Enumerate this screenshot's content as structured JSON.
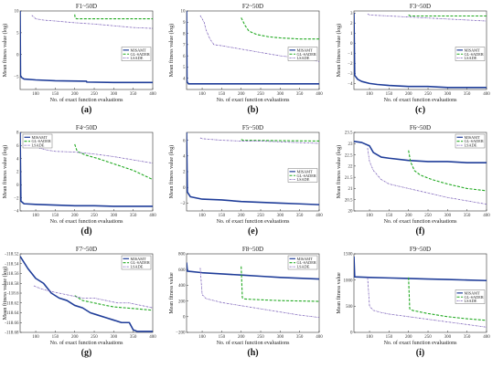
{
  "colors": {
    "misamt": "#1f3d99",
    "gl_sader": "#22aa22",
    "lsade": "#7a5fb8"
  },
  "chart_data": [
    {
      "type": "line",
      "panel_label": "(a)",
      "title": "F1~50D",
      "xlabel": "No. of exact function evaluations",
      "ylabel": "Mean fitness value (log)",
      "xlim": [
        60,
        400
      ],
      "ylim": [
        -8,
        10
      ],
      "xticks": [
        100,
        150,
        200,
        250,
        300,
        350,
        400
      ],
      "yticks": [
        -5,
        0,
        5,
        10
      ],
      "legend": "center-right",
      "series": [
        {
          "name": "MISAMT",
          "x": [
            60,
            61,
            63,
            70,
            100,
            150,
            230,
            231,
            300,
            400
          ],
          "y": [
            10,
            -4.8,
            -5.2,
            -5.6,
            -5.8,
            -6.0,
            -6.1,
            -6.3,
            -6.4,
            -6.4
          ]
        },
        {
          "name": "GL-SADER",
          "x": [
            200,
            201,
            205,
            400
          ],
          "y": [
            9.2,
            8.4,
            8.2,
            8.2
          ]
        },
        {
          "name": "LSADE",
          "x": [
            90,
            100,
            120,
            150,
            200,
            250,
            300,
            350,
            400
          ],
          "y": [
            9.0,
            8.2,
            7.9,
            7.7,
            7.3,
            7.0,
            6.6,
            6.2,
            6.0
          ]
        }
      ]
    },
    {
      "type": "line",
      "panel_label": "(b)",
      "title": "F2~50D",
      "xlabel": "No. of exact function evaluations",
      "ylabel": "Mean fitness value (log)",
      "xlim": [
        60,
        400
      ],
      "ylim": [
        3,
        10
      ],
      "xticks": [
        100,
        150,
        200,
        250,
        300,
        350,
        400
      ],
      "yticks": [
        4,
        5,
        6,
        7,
        8,
        9,
        10
      ],
      "legend": "center-right",
      "series": [
        {
          "name": "MISAMT",
          "x": [
            60,
            61,
            65,
            400
          ],
          "y": [
            10,
            3.7,
            3.5,
            3.5
          ]
        },
        {
          "name": "GL-SADER",
          "x": [
            200,
            210,
            220,
            240,
            270,
            300,
            350,
            400
          ],
          "y": [
            9.4,
            8.7,
            8.2,
            7.9,
            7.7,
            7.6,
            7.5,
            7.5
          ]
        },
        {
          "name": "LSADE",
          "x": [
            95,
            100,
            105,
            110,
            120,
            130,
            150,
            200,
            250,
            300,
            350,
            400
          ],
          "y": [
            9.6,
            9.3,
            9.0,
            8.3,
            7.5,
            7.0,
            6.9,
            6.6,
            6.3,
            6.0,
            5.8,
            5.5
          ]
        }
      ]
    },
    {
      "type": "line",
      "panel_label": "(c)",
      "title": "F3~50D",
      "xlabel": "No. of exact function evaluations",
      "ylabel": "Mean fitness value (log)",
      "xlim": [
        60,
        400
      ],
      "ylim": [
        -4.6,
        3.2
      ],
      "xticks": [
        100,
        150,
        200,
        250,
        300,
        350,
        400
      ],
      "yticks": [
        -4,
        -3,
        -2,
        -1,
        0,
        1,
        2,
        3
      ],
      "legend": "center-right",
      "series": [
        {
          "name": "MISAMT",
          "x": [
            60,
            62,
            70,
            80,
            100,
            120,
            150,
            200,
            250,
            300,
            350,
            400
          ],
          "y": [
            3,
            -3.2,
            -3.6,
            -3.8,
            -4.0,
            -4.1,
            -4.2,
            -4.3,
            -4.3,
            -4.4,
            -4.4,
            -4.4
          ]
        },
        {
          "name": "GL-SADER",
          "x": [
            200,
            205,
            400
          ],
          "y": [
            2.8,
            2.7,
            2.7
          ]
        },
        {
          "name": "LSADE",
          "x": [
            95,
            100,
            150,
            200,
            250,
            300,
            350,
            400
          ],
          "y": [
            2.9,
            2.8,
            2.7,
            2.6,
            2.5,
            2.4,
            2.3,
            2.2
          ]
        }
      ]
    },
    {
      "type": "line",
      "panel_label": "(d)",
      "title": "F4~50D",
      "xlabel": "No. of exact function evaluations",
      "ylabel": "Mean fitness value (log)",
      "xlim": [
        60,
        400
      ],
      "ylim": [
        -4,
        8
      ],
      "xticks": [
        100,
        150,
        200,
        250,
        300,
        350,
        400
      ],
      "yticks": [
        -4,
        -2,
        0,
        2,
        4,
        6,
        8
      ],
      "legend": "top-left",
      "series": [
        {
          "name": "MISAMT",
          "x": [
            60,
            62,
            70,
            100,
            150,
            200,
            250,
            300,
            350,
            400
          ],
          "y": [
            8,
            -2.5,
            -2.9,
            -3.0,
            -3.1,
            -3.2,
            -3.2,
            -3.3,
            -3.3,
            -3.3
          ]
        },
        {
          "name": "GL-SADER",
          "x": [
            200,
            205,
            210,
            230,
            260,
            300,
            350,
            400
          ],
          "y": [
            6.2,
            5.3,
            5.0,
            4.5,
            4.0,
            3.2,
            2.2,
            0.8
          ]
        },
        {
          "name": "LSADE",
          "x": [
            95,
            100,
            110,
            130,
            150,
            200,
            250,
            300,
            350,
            400
          ],
          "y": [
            7.2,
            6.2,
            5.6,
            5.3,
            5.1,
            5.0,
            4.7,
            4.3,
            3.8,
            3.3
          ]
        }
      ]
    },
    {
      "type": "line",
      "panel_label": "(e)",
      "title": "F5~50D",
      "xlabel": "No. of exact function evaluations",
      "ylabel": "Mean fitness value (log)",
      "xlim": [
        60,
        400
      ],
      "ylim": [
        -3,
        7
      ],
      "xticks": [
        100,
        150,
        200,
        250,
        300,
        350,
        400
      ],
      "yticks": [
        -2,
        0,
        2,
        4,
        6
      ],
      "legend": "center-right",
      "series": [
        {
          "name": "MISAMT",
          "x": [
            60,
            62,
            70,
            100,
            150,
            200,
            250,
            300,
            350,
            400
          ],
          "y": [
            7,
            -0.6,
            -1.2,
            -1.5,
            -1.6,
            -1.8,
            -1.9,
            -2.0,
            -2.1,
            -2.2
          ]
        },
        {
          "name": "GL-SADER",
          "x": [
            200,
            205,
            400
          ],
          "y": [
            6.1,
            6.0,
            5.9
          ]
        },
        {
          "name": "LSADE",
          "x": [
            95,
            100,
            150,
            200,
            250,
            300,
            350,
            400
          ],
          "y": [
            6.3,
            6.2,
            6.0,
            5.9,
            5.9,
            5.8,
            5.7,
            5.6
          ]
        }
      ]
    },
    {
      "type": "line",
      "panel_label": "(f)",
      "title": "F6~50D",
      "xlabel": "No. of exact function evaluations",
      "ylabel": "Mean fitness value (log)",
      "xlim": [
        60,
        400
      ],
      "ylim": [
        20,
        23.5
      ],
      "xticks": [
        100,
        150,
        200,
        250,
        300,
        350,
        400
      ],
      "yticks": [
        20,
        20.5,
        21,
        21.5,
        22,
        22.5,
        23,
        23.5
      ],
      "legend": "top-right",
      "series": [
        {
          "name": "MISAMT",
          "x": [
            60,
            80,
            100,
            110,
            130,
            150,
            200,
            250,
            300,
            350,
            400
          ],
          "y": [
            23.1,
            23.05,
            22.9,
            22.6,
            22.4,
            22.35,
            22.25,
            22.2,
            22.2,
            22.15,
            22.15
          ]
        },
        {
          "name": "GL-SADER",
          "x": [
            200,
            205,
            215,
            230,
            260,
            300,
            350,
            400
          ],
          "y": [
            22.7,
            22.2,
            21.8,
            21.6,
            21.4,
            21.2,
            21.0,
            20.9
          ]
        },
        {
          "name": "LSADE",
          "x": [
            95,
            100,
            110,
            130,
            150,
            200,
            250,
            300,
            350,
            400
          ],
          "y": [
            22.8,
            22.2,
            21.8,
            21.4,
            21.2,
            21.0,
            20.8,
            20.6,
            20.45,
            20.3
          ]
        }
      ]
    },
    {
      "type": "line",
      "panel_label": "(g)",
      "title": "F7~50D",
      "xlabel": "No. of exact function evaluations",
      "ylabel": "Mean fitness value (log)",
      "xlim": [
        60,
        400
      ],
      "ylim": [
        -118.68,
        -118.52
      ],
      "xticks": [
        100,
        150,
        200,
        250,
        300,
        350,
        400
      ],
      "yticks": [
        -118.52,
        -118.54,
        -118.56,
        -118.58,
        -118.6,
        -118.62,
        -118.64,
        -118.66,
        -118.68
      ],
      "yticklabels": [
        "-118.52",
        "-118.54",
        "-118.56",
        "-118.58",
        "-118.6",
        "-118.62",
        "-118.64",
        "-118.66",
        "-118.68"
      ],
      "legend": "top-right",
      "series": [
        {
          "name": "MISAMT",
          "x": [
            60,
            80,
            100,
            120,
            140,
            160,
            180,
            200,
            220,
            240,
            260,
            280,
            300,
            320,
            340,
            350,
            360,
            380,
            400
          ],
          "y": [
            -118.525,
            -118.55,
            -118.57,
            -118.58,
            -118.6,
            -118.61,
            -118.615,
            -118.625,
            -118.63,
            -118.64,
            -118.645,
            -118.65,
            -118.655,
            -118.66,
            -118.66,
            -118.675,
            -118.678,
            -118.678,
            -118.678
          ]
        },
        {
          "name": "GL-SADER",
          "x": [
            200,
            220,
            250,
            280,
            300,
            330,
            360,
            400
          ],
          "y": [
            -118.605,
            -118.615,
            -118.62,
            -118.625,
            -118.628,
            -118.63,
            -118.632,
            -118.635
          ]
        },
        {
          "name": "LSADE",
          "x": [
            95,
            110,
            130,
            160,
            190,
            220,
            250,
            280,
            310,
            340,
            370,
            400
          ],
          "y": [
            -118.585,
            -118.59,
            -118.595,
            -118.6,
            -118.605,
            -118.61,
            -118.61,
            -118.615,
            -118.62,
            -118.62,
            -118.625,
            -118.63
          ]
        }
      ]
    },
    {
      "type": "line",
      "panel_label": "(h)",
      "title": "F8~50D",
      "xlabel": "No. of exact function evaluations",
      "ylabel": "Mean fitness value",
      "xlim": [
        60,
        400
      ],
      "ylim": [
        -200,
        800
      ],
      "xticks": [
        100,
        150,
        200,
        250,
        300,
        350,
        400
      ],
      "yticks": [
        -200,
        0,
        200,
        400,
        600,
        800
      ],
      "legend": "top-right",
      "series": [
        {
          "name": "MISAMT",
          "x": [
            60,
            62,
            100,
            150,
            200,
            250,
            300,
            350,
            400
          ],
          "y": [
            690,
            580,
            560,
            545,
            530,
            515,
            500,
            490,
            480
          ]
        },
        {
          "name": "GL-SADER",
          "x": [
            200,
            203,
            210,
            250,
            300,
            350,
            400
          ],
          "y": [
            640,
            240,
            225,
            215,
            205,
            200,
            195
          ]
        },
        {
          "name": "LSADE",
          "x": [
            95,
            100,
            110,
            150,
            200,
            250,
            300,
            350,
            400
          ],
          "y": [
            620,
            280,
            230,
            180,
            140,
            100,
            60,
            20,
            -10
          ]
        }
      ]
    },
    {
      "type": "line",
      "panel_label": "(i)",
      "title": "F9~50D",
      "xlabel": "No. of exact function evaluations",
      "ylabel": "Mean fitness value",
      "xlim": [
        60,
        400
      ],
      "ylim": [
        0,
        1500
      ],
      "xticks": [
        100,
        150,
        200,
        250,
        300,
        350,
        400
      ],
      "yticks": [
        0,
        500,
        1000,
        1500
      ],
      "legend": "center-right",
      "series": [
        {
          "name": "MISAMT",
          "x": [
            60,
            62,
            100,
            150,
            200,
            250,
            300,
            350,
            400
          ],
          "y": [
            1450,
            1060,
            1050,
            1040,
            1030,
            1020,
            1010,
            1000,
            990
          ]
        },
        {
          "name": "GL-SADER",
          "x": [
            200,
            203,
            210,
            250,
            300,
            350,
            400
          ],
          "y": [
            1050,
            450,
            420,
            360,
            300,
            260,
            230
          ]
        },
        {
          "name": "LSADE",
          "x": [
            95,
            100,
            110,
            130,
            150,
            200,
            250,
            300,
            350,
            400
          ],
          "y": [
            1050,
            500,
            420,
            380,
            350,
            300,
            250,
            200,
            150,
            100
          ]
        }
      ]
    }
  ]
}
